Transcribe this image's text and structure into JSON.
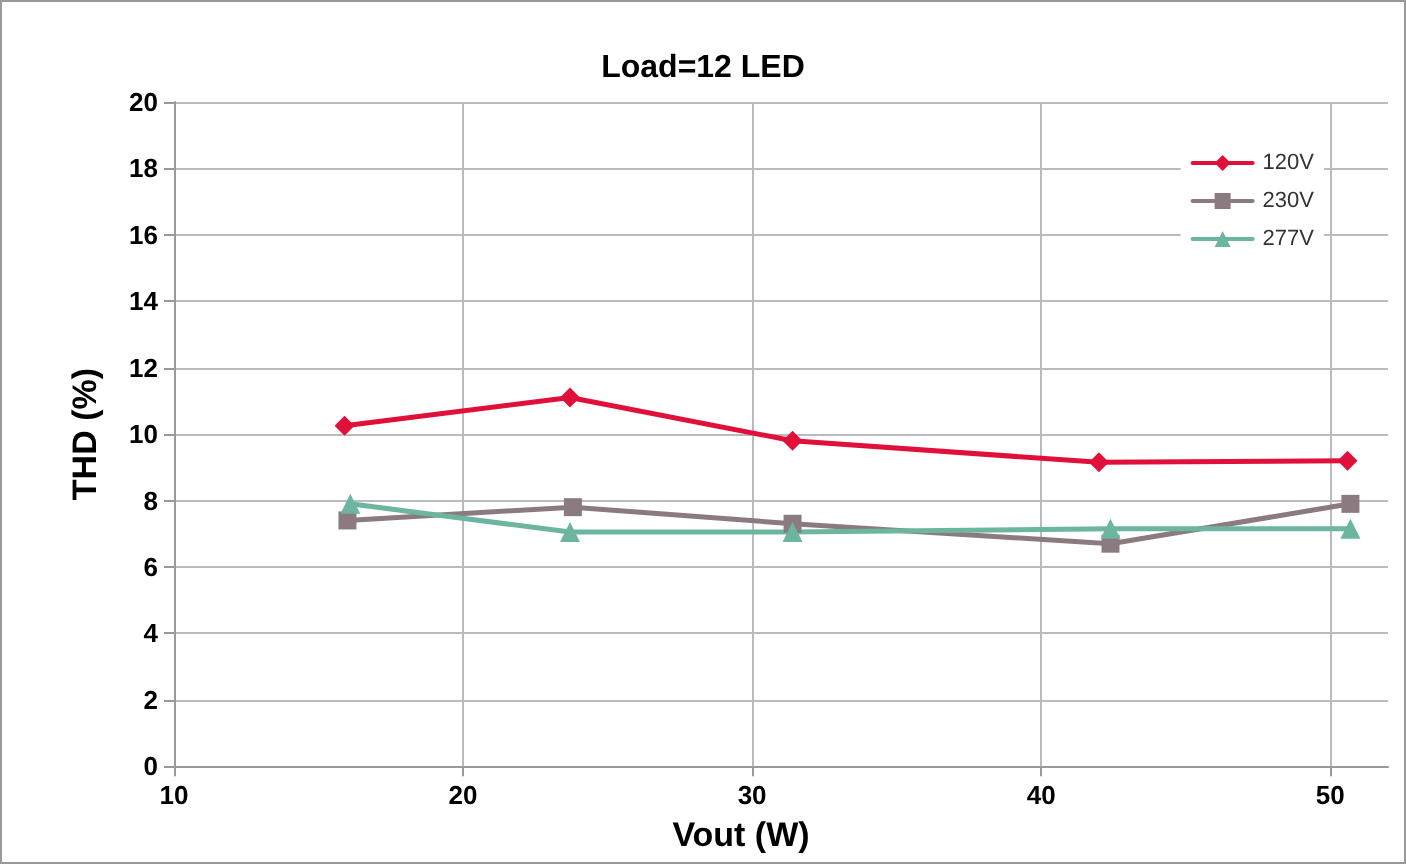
{
  "chart_data": {
    "type": "line",
    "title": "Load=12 LED",
    "xlabel": "Vout (W)",
    "ylabel": "THD (%)",
    "xlim": [
      10,
      52
    ],
    "xticks": [
      10,
      20,
      30,
      40,
      50
    ],
    "ylim": [
      0,
      20
    ],
    "yticks": [
      0,
      2,
      4,
      6,
      8,
      10,
      12,
      14,
      16,
      18,
      20
    ],
    "grid": true,
    "legend": "top right",
    "line_style": "solid",
    "series": [
      {
        "name": "120V",
        "color": "#e0103a",
        "marker": "diamond",
        "x": [
          15.9,
          23.7,
          31.4,
          42.0,
          50.6
        ],
        "values": [
          10.25,
          11.1,
          9.8,
          9.15,
          9.2
        ]
      },
      {
        "name": "230V",
        "color": "#8b7b80",
        "marker": "square",
        "x": [
          16.0,
          23.8,
          31.4,
          42.4,
          50.7
        ],
        "values": [
          7.4,
          7.8,
          7.3,
          6.7,
          7.9
        ]
      },
      {
        "name": "277V",
        "color": "#6cb5a0",
        "marker": "triangle",
        "x": [
          16.1,
          23.7,
          31.4,
          42.4,
          50.7
        ],
        "values": [
          7.9,
          7.05,
          7.05,
          7.15,
          7.15
        ]
      }
    ]
  }
}
